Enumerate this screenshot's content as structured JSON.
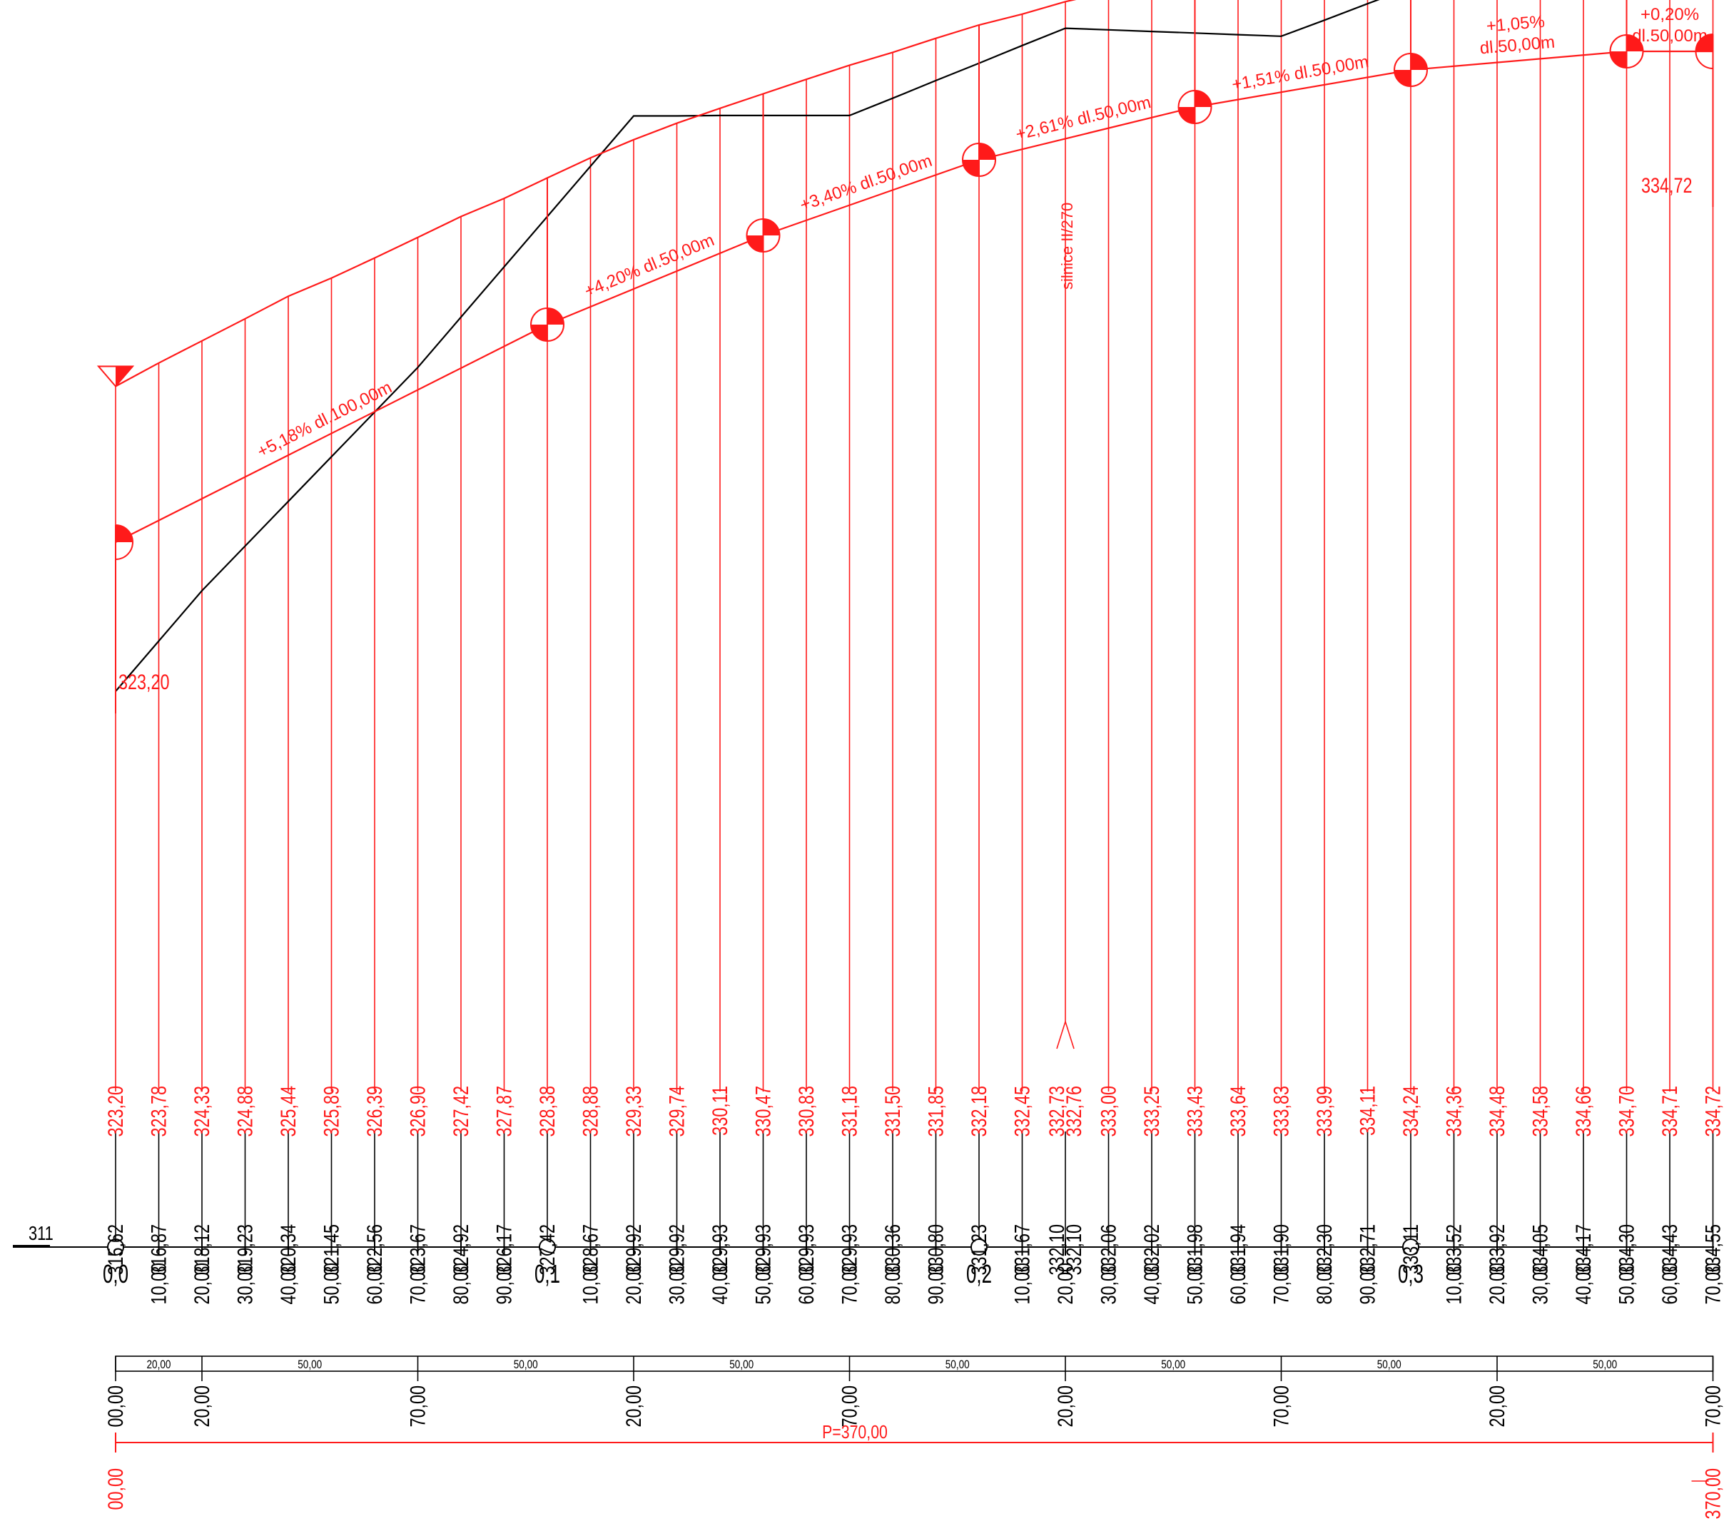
{
  "colors": {
    "design": "#ff1a1a",
    "terrain": "#000000"
  },
  "datum_label": "311",
  "stations": [
    {
      "label": "0,0",
      "terrain": "315,62",
      "design": "323,20",
      "major": true
    },
    {
      "label": "10,00",
      "terrain": "316,87",
      "design": "323,78"
    },
    {
      "label": "20,00",
      "terrain": "318,12",
      "design": "324,33"
    },
    {
      "label": "30,00",
      "terrain": "319,23",
      "design": "324,88"
    },
    {
      "label": "40,00",
      "terrain": "320,34",
      "design": "325,44"
    },
    {
      "label": "50,00",
      "terrain": "321,45",
      "design": "325,89"
    },
    {
      "label": "60,00",
      "terrain": "322,56",
      "design": "326,39"
    },
    {
      "label": "70,00",
      "terrain": "323,67",
      "design": "326,90"
    },
    {
      "label": "80,00",
      "terrain": "324,92",
      "design": "327,42"
    },
    {
      "label": "90,00",
      "terrain": "326,17",
      "design": "327,87"
    },
    {
      "label": "0,1",
      "terrain": "327,42",
      "design": "328,38",
      "major": true
    },
    {
      "label": "10,00",
      "terrain": "328,67",
      "design": "328,88"
    },
    {
      "label": "20,00",
      "terrain": "329,92",
      "design": "329,33"
    },
    {
      "label": "30,00",
      "terrain": "329,92",
      "design": "329,74"
    },
    {
      "label": "40,00",
      "terrain": "329,93",
      "design": "330,11"
    },
    {
      "label": "50,00",
      "terrain": "329,93",
      "design": "330,47"
    },
    {
      "label": "60,00",
      "terrain": "329,93",
      "design": "330,83"
    },
    {
      "label": "70,00",
      "terrain": "329,93",
      "design": "331,18"
    },
    {
      "label": "80,00",
      "terrain": "330,36",
      "design": "331,50"
    },
    {
      "label": "90,00",
      "terrain": "330,80",
      "design": "331,85"
    },
    {
      "label": "0,2",
      "terrain": "331,23",
      "design": "332,18",
      "major": true
    },
    {
      "label": "10,00",
      "terrain": "331,67",
      "design": "332,45"
    },
    {
      "label": "20,00",
      "terrain": "332,10",
      "design": "332,73",
      "terrain2": "332,10",
      "design2": "332,76",
      "pair": true
    },
    {
      "label": "30,00",
      "terrain": "332,06",
      "design": "333,00"
    },
    {
      "label": "40,00",
      "terrain": "332,02",
      "design": "333,25"
    },
    {
      "label": "50,00",
      "terrain": "331,98",
      "design": "333,43"
    },
    {
      "label": "60,00",
      "terrain": "331,94",
      "design": "333,64"
    },
    {
      "label": "70,00",
      "terrain": "331,90",
      "design": "333,83"
    },
    {
      "label": "80,00",
      "terrain": "332,30",
      "design": "333,99"
    },
    {
      "label": "90,00",
      "terrain": "332,71",
      "design": "334,11"
    },
    {
      "label": "0,3",
      "terrain": "333,11",
      "design": "334,24",
      "major": true
    },
    {
      "label": "10,00",
      "terrain": "333,52",
      "design": "334,36"
    },
    {
      "label": "20,00",
      "terrain": "333,92",
      "design": "334,48"
    },
    {
      "label": "30,00",
      "terrain": "334,05",
      "design": "334,58"
    },
    {
      "label": "40,00",
      "terrain": "334,17",
      "design": "334,66"
    },
    {
      "label": "50,00",
      "terrain": "334,30",
      "design": "334,70"
    },
    {
      "label": "60,00",
      "terrain": "334,43",
      "design": "334,71"
    },
    {
      "label": "70,00",
      "terrain": "334,55",
      "design": "334,72"
    }
  ],
  "terrain_profile": [
    {
      "km": 0,
      "z": 315.62
    },
    {
      "km": 10,
      "z": 316.87
    },
    {
      "km": 20,
      "z": 318.12
    },
    {
      "km": 30,
      "z": 319.23
    },
    {
      "km": 40,
      "z": 320.34
    },
    {
      "km": 50,
      "z": 321.45
    },
    {
      "km": 60,
      "z": 322.56
    },
    {
      "km": 70,
      "z": 323.67
    },
    {
      "km": 80,
      "z": 324.92
    },
    {
      "km": 90,
      "z": 326.17
    },
    {
      "km": 100,
      "z": 327.42
    },
    {
      "km": 110,
      "z": 328.67
    },
    {
      "km": 120,
      "z": 329.92
    },
    {
      "km": 130,
      "z": 329.92
    },
    {
      "km": 140,
      "z": 329.93
    },
    {
      "km": 150,
      "z": 329.93
    },
    {
      "km": 160,
      "z": 329.93
    },
    {
      "km": 170,
      "z": 329.93
    },
    {
      "km": 180,
      "z": 330.36
    },
    {
      "km": 190,
      "z": 330.8
    },
    {
      "km": 200,
      "z": 331.23
    },
    {
      "km": 210,
      "z": 331.67
    },
    {
      "km": 220,
      "z": 332.1
    },
    {
      "km": 230,
      "z": 332.06
    },
    {
      "km": 240,
      "z": 332.02
    },
    {
      "km": 250,
      "z": 331.98
    },
    {
      "km": 260,
      "z": 331.94
    },
    {
      "km": 270,
      "z": 331.9
    },
    {
      "km": 280,
      "z": 332.3
    },
    {
      "km": 290,
      "z": 332.71
    },
    {
      "km": 300,
      "z": 333.11
    },
    {
      "km": 310,
      "z": 333.52
    },
    {
      "km": 320,
      "z": 333.92
    },
    {
      "km": 330,
      "z": 334.05
    },
    {
      "km": 340,
      "z": 334.17
    },
    {
      "km": 350,
      "z": 334.3
    },
    {
      "km": 360,
      "z": 334.43
    },
    {
      "km": 370,
      "z": 334.55
    }
  ],
  "design_profile": [
    {
      "km": 0,
      "z": 323.2
    },
    {
      "km": 10,
      "z": 323.78
    },
    {
      "km": 20,
      "z": 324.33
    },
    {
      "km": 30,
      "z": 324.88
    },
    {
      "km": 40,
      "z": 325.44
    },
    {
      "km": 50,
      "z": 325.89
    },
    {
      "km": 60,
      "z": 326.39
    },
    {
      "km": 70,
      "z": 326.9
    },
    {
      "km": 80,
      "z": 327.42
    },
    {
      "km": 90,
      "z": 327.87
    },
    {
      "km": 100,
      "z": 328.38
    },
    {
      "km": 110,
      "z": 328.88
    },
    {
      "km": 120,
      "z": 329.33
    },
    {
      "km": 130,
      "z": 329.74
    },
    {
      "km": 140,
      "z": 330.11
    },
    {
      "km": 150,
      "z": 330.47
    },
    {
      "km": 160,
      "z": 330.83
    },
    {
      "km": 170,
      "z": 331.18
    },
    {
      "km": 180,
      "z": 331.5
    },
    {
      "km": 190,
      "z": 331.85
    },
    {
      "km": 200,
      "z": 332.18
    },
    {
      "km": 210,
      "z": 332.45
    },
    {
      "km": 220,
      "z": 332.76
    },
    {
      "km": 230,
      "z": 333.0
    },
    {
      "km": 240,
      "z": 333.25
    },
    {
      "km": 250,
      "z": 333.43
    },
    {
      "km": 260,
      "z": 333.64
    },
    {
      "km": 270,
      "z": 333.83
    },
    {
      "km": 280,
      "z": 333.99
    },
    {
      "km": 290,
      "z": 334.11
    },
    {
      "km": 300,
      "z": 334.24
    },
    {
      "km": 310,
      "z": 334.36
    },
    {
      "km": 320,
      "z": 334.48
    },
    {
      "km": 330,
      "z": 334.58
    },
    {
      "km": 340,
      "z": 334.66
    },
    {
      "km": 350,
      "z": 334.7
    },
    {
      "km": 360,
      "z": 334.71
    },
    {
      "km": 370,
      "z": 334.72
    }
  ],
  "grade_labels": [
    {
      "text": "+5,18% dl.100,00m"
    },
    {
      "text": "+4,20% dl.50,00m"
    },
    {
      "text": "+3,40% dl.50,00m"
    },
    {
      "text": "+2,61% dl.50,00m"
    },
    {
      "text": "+1,51% dl.50,00m"
    },
    {
      "lines": [
        "+1,05%",
        "dl.50,00m"
      ]
    },
    {
      "lines": [
        "+0,20%",
        "dl.50,00m"
      ]
    }
  ],
  "start_elevation": "323,20",
  "end_elevation": "334,72",
  "road_label": "silnice II/270",
  "segment_band": {
    "lengths": [
      "20,00",
      "50,00",
      "50,00",
      "50,00",
      "50,00",
      "50,00",
      "50,00",
      "50,00"
    ],
    "chainages": [
      "00,00",
      "20,00",
      "70,00",
      "20,00",
      "70,00",
      "20,00",
      "70,00",
      "20,00",
      "70,00"
    ]
  },
  "total": {
    "label": "P=370,00",
    "start": "00,00",
    "end": "370,00"
  }
}
